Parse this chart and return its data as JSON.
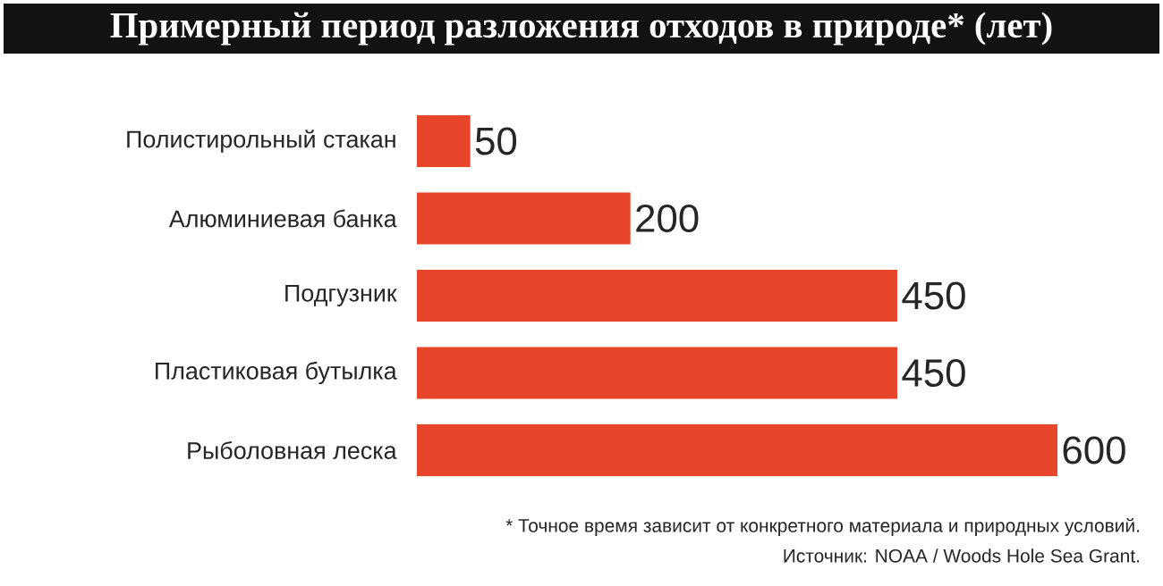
{
  "chart_data": {
    "type": "bar",
    "orientation": "horizontal",
    "title": "Примерный период разложения отходов в природе* (лет)",
    "categories": [
      "Полистирольный стакан",
      "Алюминиевая банка",
      "Подгузник",
      "Пластиковая бутылка",
      "Рыболовная леска"
    ],
    "values": [
      50,
      200,
      450,
      450,
      600
    ],
    "color": "#e8462a",
    "xlim": [
      0,
      600
    ],
    "data_labels": true,
    "annotations": [
      "* Точное время зависит от конкретного материала и природных условий.",
      "Источник: NOAA / Woods Hole Sea Grant."
    ]
  }
}
